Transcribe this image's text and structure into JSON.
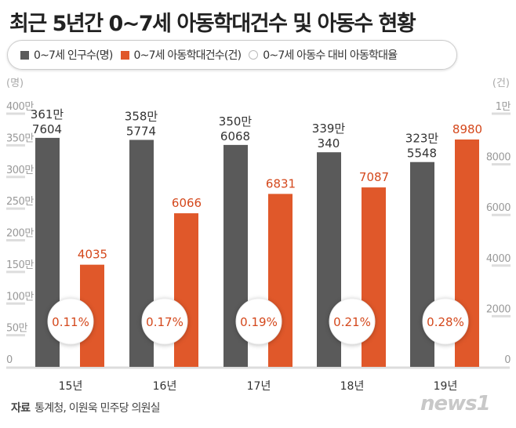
{
  "title": "최근 5년간 0~7세 아동학대건수 및 아동수 현황",
  "legend": [
    {
      "label": "0~7세 인구수(명)",
      "color": "#5a5a5a",
      "shape": "square"
    },
    {
      "label": "0~7세 아동학대건수(건)",
      "color": "#e0582a",
      "shape": "square"
    },
    {
      "label": "0~7세 아동수 대비 아동학대율",
      "color": "#ffffff",
      "shape": "circle"
    }
  ],
  "source": {
    "label": "자료",
    "text": "통계청, 이원욱 민주당 의원실"
  },
  "logo": "news1",
  "colors": {
    "population": "#5a5a5a",
    "cases": "#e0582a",
    "case_label": "#d4481c",
    "rate_label": "#d4481c",
    "grid": "#dddddd",
    "tick": "#999999"
  },
  "chart_data": {
    "type": "bar",
    "title": "최근 5년간 0~7세 아동학대건수 및 아동수 현황",
    "categories": [
      "15년",
      "16년",
      "17년",
      "18년",
      "19년"
    ],
    "left_axis": {
      "unit": "(명)",
      "ylim": [
        0,
        4000000
      ],
      "ticks": [
        "0",
        "50만",
        "100만",
        "150만",
        "200만",
        "250만",
        "300만",
        "350만",
        "400만"
      ]
    },
    "right_axis": {
      "unit": "(건)",
      "ylim": [
        0,
        10000
      ],
      "ticks": [
        "0",
        "2000",
        "4000",
        "6000",
        "8000",
        "1만"
      ]
    },
    "series": [
      {
        "name": "0~7세 인구수(명)",
        "axis": "left",
        "values": [
          3617604,
          3585774,
          3506068,
          3390340,
          3235548
        ],
        "labels": [
          [
            "361만",
            "7604"
          ],
          [
            "358만",
            "5774"
          ],
          [
            "350만",
            "6068"
          ],
          [
            "339만",
            "340"
          ],
          [
            "323만",
            "5548"
          ]
        ]
      },
      {
        "name": "0~7세 아동학대건수(건)",
        "axis": "right",
        "values": [
          4035,
          6066,
          6831,
          7087,
          8980
        ],
        "labels": [
          "4035",
          "6066",
          "6831",
          "7087",
          "8980"
        ]
      },
      {
        "name": "0~7세 아동수 대비 아동학대율",
        "type": "annotation",
        "values": [
          0.11,
          0.17,
          0.19,
          0.21,
          0.28
        ],
        "labels": [
          "0.11%",
          "0.17%",
          "0.19%",
          "0.21%",
          "0.28%"
        ]
      }
    ],
    "grid": false,
    "legend_position": "top"
  }
}
